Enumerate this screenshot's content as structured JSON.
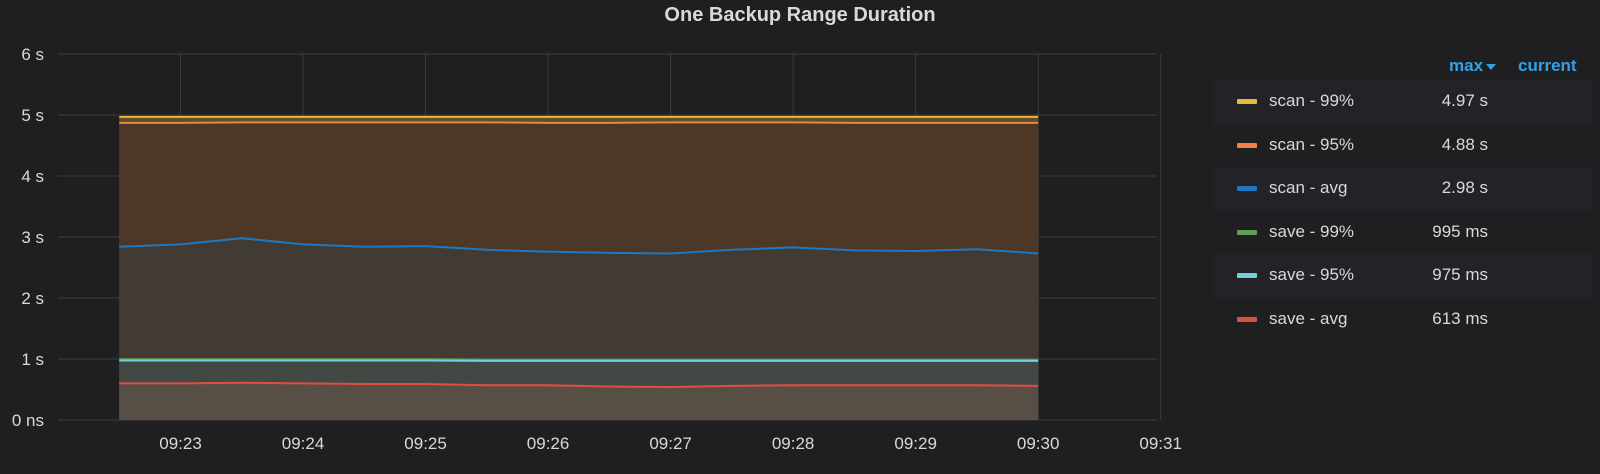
{
  "panel": {
    "title": "One Backup Range Duration"
  },
  "legend": {
    "col_max": "max",
    "col_current": "current",
    "items": [
      {
        "name": "scan - 99%",
        "max": "4.97 s"
      },
      {
        "name": "scan - 95%",
        "max": "4.88 s"
      },
      {
        "name": "scan - avg",
        "max": "2.98 s"
      },
      {
        "name": "save - 99%",
        "max": "995 ms"
      },
      {
        "name": "save - 95%",
        "max": "975 ms"
      },
      {
        "name": "save - avg",
        "max": "613 ms"
      }
    ]
  },
  "chart_data": {
    "type": "area",
    "title": "One Backup Range Duration",
    "xlabel": "",
    "ylabel": "",
    "grid": true,
    "x_tick_labels": [
      "09:23",
      "09:24",
      "09:25",
      "09:26",
      "09:27",
      "09:28",
      "09:29",
      "09:30",
      "09:31"
    ],
    "y_tick_labels": [
      "0 ns",
      "1 s",
      "2 s",
      "3 s",
      "4 s",
      "5 s",
      "6 s"
    ],
    "ylim": [
      0,
      6
    ],
    "y_unit": "seconds",
    "x_minutes": [
      0,
      0.5,
      1,
      1.5,
      2,
      2.5,
      3,
      3.5,
      4,
      4.5,
      5,
      5.5,
      6,
      6.5,
      7,
      7.5
    ],
    "x_range_minutes": [
      -0.5,
      8.47
    ],
    "x_note": "x_minutes are minutes after 09:22:30",
    "series": [
      {
        "name": "scan - 99%",
        "color": "#eab839",
        "fill": "#6b5530",
        "values": [
          4.97,
          4.97,
          4.97,
          4.97,
          4.97,
          4.97,
          4.97,
          4.97,
          4.97,
          4.97,
          4.97,
          4.97,
          4.97,
          4.97,
          4.97,
          4.97
        ]
      },
      {
        "name": "scan - 95%",
        "color": "#ef843c",
        "fill": "#4a3527",
        "values": [
          4.87,
          4.87,
          4.88,
          4.88,
          4.88,
          4.88,
          4.88,
          4.87,
          4.87,
          4.88,
          4.88,
          4.88,
          4.87,
          4.87,
          4.87,
          4.87
        ]
      },
      {
        "name": "scan - avg",
        "color": "#1f78c1",
        "fill": "#3f3c36",
        "values": [
          2.84,
          2.88,
          2.98,
          2.88,
          2.84,
          2.85,
          2.79,
          2.76,
          2.74,
          2.73,
          2.79,
          2.83,
          2.78,
          2.77,
          2.8,
          2.73
        ]
      },
      {
        "name": "save - 99%",
        "color": "#629e51",
        "fill": "#3e3f39",
        "values": [
          0.995,
          0.995,
          0.995,
          0.995,
          0.995,
          0.995,
          0.99,
          0.99,
          0.99,
          0.99,
          0.99,
          0.99,
          0.99,
          0.99,
          0.99,
          0.99
        ]
      },
      {
        "name": "save - 95%",
        "color": "#6ed0e0",
        "fill": "#434a45",
        "values": [
          0.975,
          0.975,
          0.975,
          0.975,
          0.975,
          0.975,
          0.97,
          0.97,
          0.97,
          0.97,
          0.97,
          0.97,
          0.97,
          0.97,
          0.97,
          0.97
        ]
      },
      {
        "name": "save - avg",
        "color": "#e24d42",
        "fill": "#5a5046",
        "values": [
          0.6,
          0.6,
          0.61,
          0.6,
          0.59,
          0.59,
          0.57,
          0.57,
          0.55,
          0.54,
          0.56,
          0.57,
          0.57,
          0.57,
          0.57,
          0.56
        ]
      }
    ]
  }
}
